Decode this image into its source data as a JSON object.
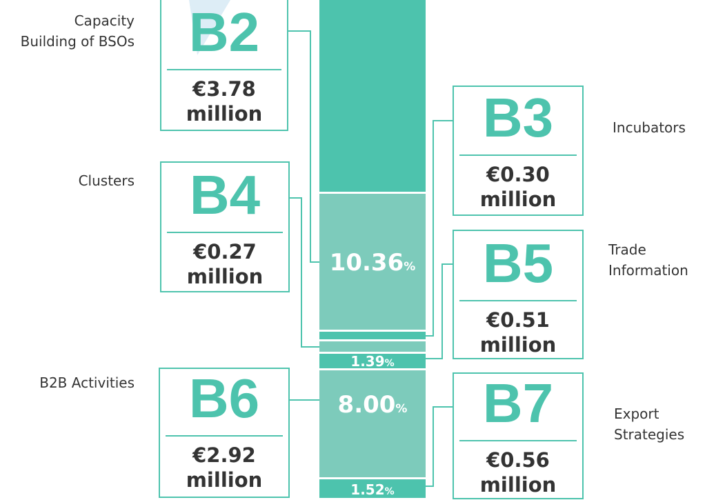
{
  "boxes": [
    {
      "code": "B2",
      "amount": "€3.78",
      "unit": "million",
      "label": [
        "Capacity",
        "Building of BSOs"
      ]
    },
    {
      "code": "B4",
      "amount": "€0.27",
      "unit": "million",
      "label": [
        "Clusters"
      ]
    },
    {
      "code": "B6",
      "amount": "€2.92",
      "unit": "million",
      "label": [
        "B2B Activities"
      ]
    },
    {
      "code": "B3",
      "amount": "€0.30",
      "unit": "million",
      "label": [
        "Incubators"
      ]
    },
    {
      "code": "B5",
      "amount": "€0.51",
      "unit": "million",
      "label": [
        "Trade",
        "Information"
      ]
    },
    {
      "code": "B7",
      "amount": "€0.56",
      "unit": "million",
      "label": [
        "Export",
        "Strategies"
      ]
    }
  ],
  "segments": [
    {
      "value": "10.36",
      "unit": "%"
    },
    {
      "value": "1.39",
      "unit": "%"
    },
    {
      "value": "8.00",
      "unit": "%"
    },
    {
      "value": "1.52",
      "unit": "%"
    }
  ]
}
